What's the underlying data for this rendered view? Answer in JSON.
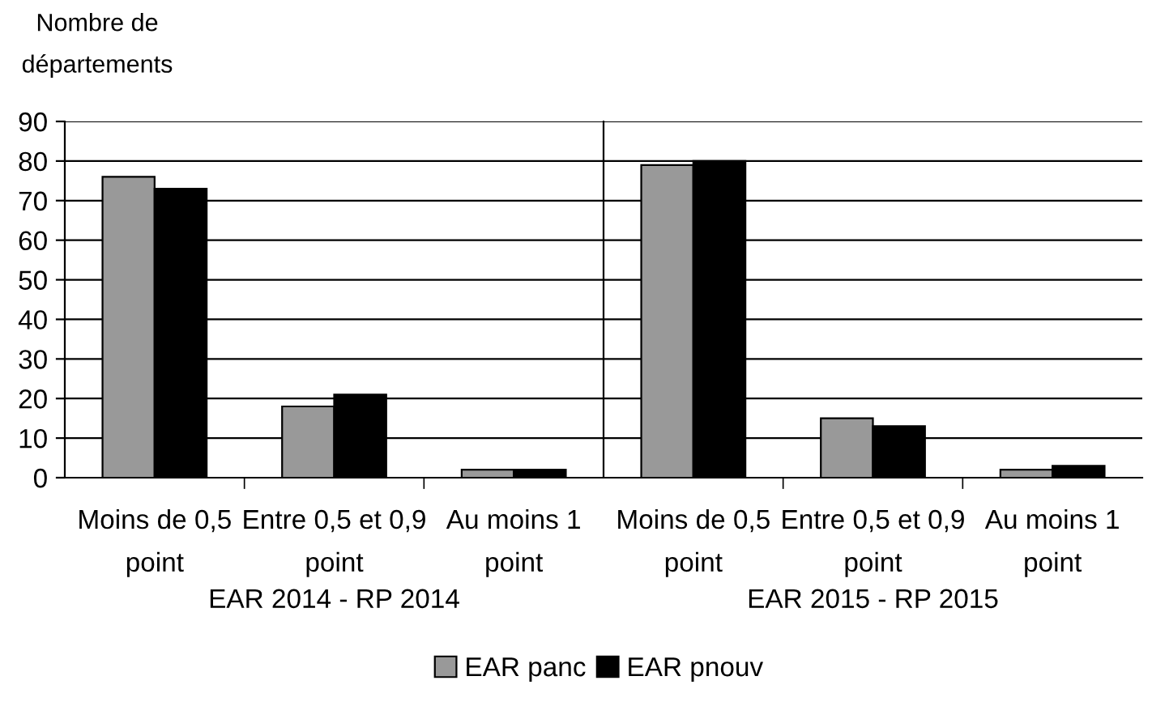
{
  "chart_data": [
    {
      "type": "bar",
      "ylabel": "Nombre de\ndépartements",
      "xlabel": "EAR 2014 - RP 2014",
      "categories": [
        "Moins de 0,5\npoint",
        "Entre 0,5 et 0,9\npoint",
        "Au moins 1\npoint"
      ],
      "series": [
        {
          "name": "EAR panc",
          "color": "#999999",
          "values": [
            76,
            18,
            2
          ]
        },
        {
          "name": "EAR pnouv",
          "color": "#000000",
          "values": [
            73,
            21,
            2
          ]
        }
      ],
      "ylim": [
        0,
        90
      ],
      "yticks": [
        0,
        10,
        20,
        30,
        40,
        50,
        60,
        70,
        80,
        90
      ],
      "grid": "y",
      "legend": "bottom"
    },
    {
      "type": "bar",
      "xlabel": "EAR 2015 - RP 2015",
      "categories": [
        "Moins de 0,5\npoint",
        "Entre 0,5 et 0,9\npoint",
        "Au moins 1\npoint"
      ],
      "series": [
        {
          "color": "#999999",
          "values": [
            79,
            15,
            2
          ]
        },
        {
          "color": "#000000",
          "values": [
            80,
            13,
            3
          ]
        }
      ],
      "ylim": [
        0,
        90
      ],
      "yticks": [
        0,
        10,
        20,
        30,
        40,
        50,
        60,
        70,
        80,
        90
      ],
      "grid": "y",
      "tick_labels": "x"
    }
  ]
}
